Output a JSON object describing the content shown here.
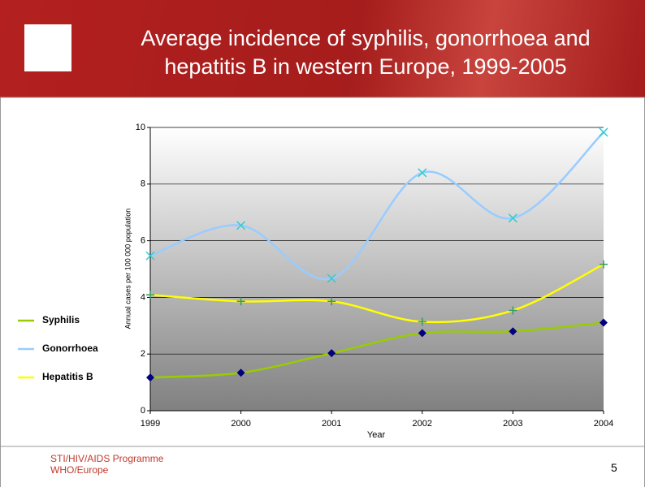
{
  "chart_data": {
    "type": "line",
    "title": "Average incidence of syphilis, gonorrhoea and hepatitis B in western Europe, 1999-2005",
    "x_label": "Year",
    "y_label": "Annual cases per 100 000 population",
    "categories": [
      "1999",
      "2000",
      "2001",
      "2002",
      "2003",
      "2004"
    ],
    "series": [
      {
        "name": "Syphilis",
        "color": "#99cc00",
        "marker": "diamond",
        "marker_color": "#000080",
        "values": [
          1.17,
          1.34,
          2.03,
          2.74,
          2.8,
          3.11
        ]
      },
      {
        "name": "Gonorrhoea",
        "color": "#99ccff",
        "marker": "x",
        "marker_color": "#33cccc",
        "values": [
          5.47,
          6.54,
          4.67,
          8.4,
          6.8,
          9.83
        ]
      },
      {
        "name": "Hepatitis B",
        "color": "#ffff00",
        "marker": "plus",
        "marker_color": "#339966",
        "values": [
          4.09,
          3.86,
          3.86,
          3.14,
          3.54,
          5.17
        ]
      }
    ],
    "ylim": [
      0,
      10
    ],
    "yticks": [
      0,
      2,
      4,
      6,
      8,
      10
    ],
    "grid": true,
    "smooth": true,
    "legend": "left"
  },
  "footer": {
    "lines": [
      "STI/HIV/AIDS Programme",
      "WHO/Europe"
    ],
    "page_number": "5"
  }
}
